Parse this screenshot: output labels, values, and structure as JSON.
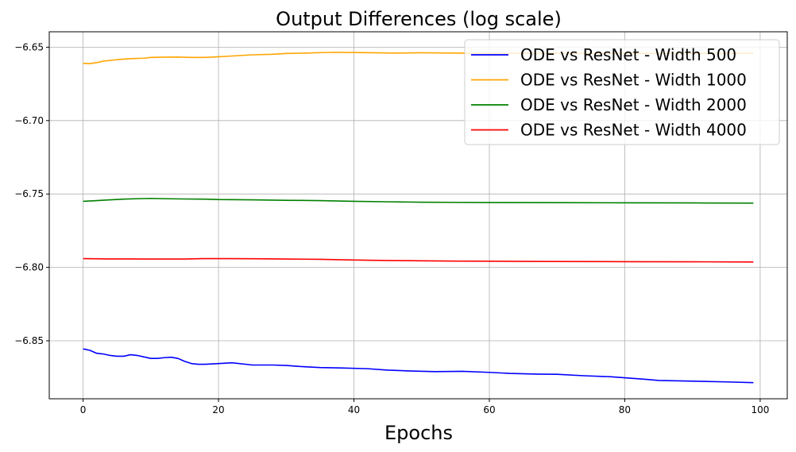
{
  "chart_data": {
    "type": "line",
    "title": "Output Differences (log scale)",
    "xlabel": "Epochs",
    "ylabel": "",
    "xlim": [
      -5,
      104
    ],
    "ylim": [
      -6.8895,
      -6.6395
    ],
    "xticks": [
      0,
      20,
      40,
      60,
      80,
      100
    ],
    "xtick_labels": [
      "0",
      "20",
      "40",
      "60",
      "80",
      "100"
    ],
    "yticks": [
      -6.65,
      -6.7,
      -6.75,
      -6.8,
      -6.85
    ],
    "ytick_labels": [
      "−6.65",
      "−6.70",
      "−6.75",
      "−6.80",
      "−6.85"
    ],
    "grid": true,
    "legend_position": "top-right",
    "series": [
      {
        "name": "ODE vs ResNet - Width 500",
        "color": "#0000ff",
        "x": [
          0,
          1,
          2,
          3,
          4,
          5,
          6,
          7,
          8,
          9,
          10,
          11,
          12,
          13,
          14,
          15,
          16,
          17,
          18,
          20,
          22,
          25,
          28,
          30,
          32,
          35,
          38,
          42,
          45,
          48,
          52,
          56,
          60,
          63,
          67,
          70,
          74,
          78,
          80,
          83,
          85,
          90,
          95,
          99
        ],
        "values": [
          -6.8555,
          -6.8565,
          -6.8585,
          -6.859,
          -6.86,
          -6.8605,
          -6.8605,
          -6.8595,
          -6.86,
          -6.861,
          -6.862,
          -6.862,
          -6.8615,
          -6.8612,
          -6.862,
          -6.864,
          -6.8655,
          -6.866,
          -6.866,
          -6.8655,
          -6.865,
          -6.8665,
          -6.8665,
          -6.8668,
          -6.8675,
          -6.8682,
          -6.8685,
          -6.869,
          -6.87,
          -6.8705,
          -6.871,
          -6.8708,
          -6.8715,
          -6.8722,
          -6.8727,
          -6.8728,
          -6.8738,
          -6.8745,
          -6.8752,
          -6.8762,
          -6.877,
          -6.8775,
          -6.878,
          -6.8785
        ]
      },
      {
        "name": "ODE vs ResNet - Width 1000",
        "color": "#ffa500",
        "x": [
          0,
          1,
          2,
          3,
          5,
          7,
          9,
          10,
          12,
          14,
          16,
          18,
          20,
          22,
          25,
          28,
          30,
          33,
          35,
          37,
          40,
          43,
          46,
          50,
          55,
          60,
          65,
          70,
          75,
          80,
          85,
          90,
          95,
          99
        ],
        "values": [
          -6.661,
          -6.6612,
          -6.6605,
          -6.6595,
          -6.6585,
          -6.6578,
          -6.6575,
          -6.657,
          -6.6568,
          -6.6567,
          -6.657,
          -6.657,
          -6.6565,
          -6.656,
          -6.6552,
          -6.6548,
          -6.6543,
          -6.654,
          -6.6537,
          -6.6535,
          -6.6536,
          -6.6538,
          -6.654,
          -6.6538,
          -6.654,
          -6.6542,
          -6.6542,
          -6.6542,
          -6.6542,
          -6.6542,
          -6.6542,
          -6.6542,
          -6.6542,
          -6.6542
        ]
      },
      {
        "name": "ODE vs ResNet - Width 2000",
        "color": "#008000",
        "x": [
          0,
          2,
          4,
          6,
          8,
          10,
          12,
          15,
          18,
          20,
          25,
          30,
          35,
          40,
          45,
          50,
          55,
          60,
          70,
          80,
          90,
          99
        ],
        "values": [
          -6.755,
          -6.7545,
          -6.754,
          -6.7535,
          -6.7532,
          -6.753,
          -6.7532,
          -6.7534,
          -6.7535,
          -6.7538,
          -6.754,
          -6.7543,
          -6.7545,
          -6.755,
          -6.7553,
          -6.7556,
          -6.7557,
          -6.7558,
          -6.7559,
          -6.756,
          -6.7561,
          -6.7562
        ]
      },
      {
        "name": "ODE vs ResNet - Width 4000",
        "color": "#ff0000",
        "x": [
          0,
          3,
          6,
          9,
          12,
          15,
          18,
          21,
          25,
          30,
          35,
          40,
          45,
          50,
          55,
          60,
          70,
          80,
          90,
          99
        ],
        "values": [
          -6.794,
          -6.7942,
          -6.7942,
          -6.7943,
          -6.7943,
          -6.7943,
          -6.794,
          -6.794,
          -6.7941,
          -6.7943,
          -6.7945,
          -6.795,
          -6.7953,
          -6.7955,
          -6.7957,
          -6.7958,
          -6.796,
          -6.7961,
          -6.7962,
          -6.7963
        ]
      }
    ]
  }
}
